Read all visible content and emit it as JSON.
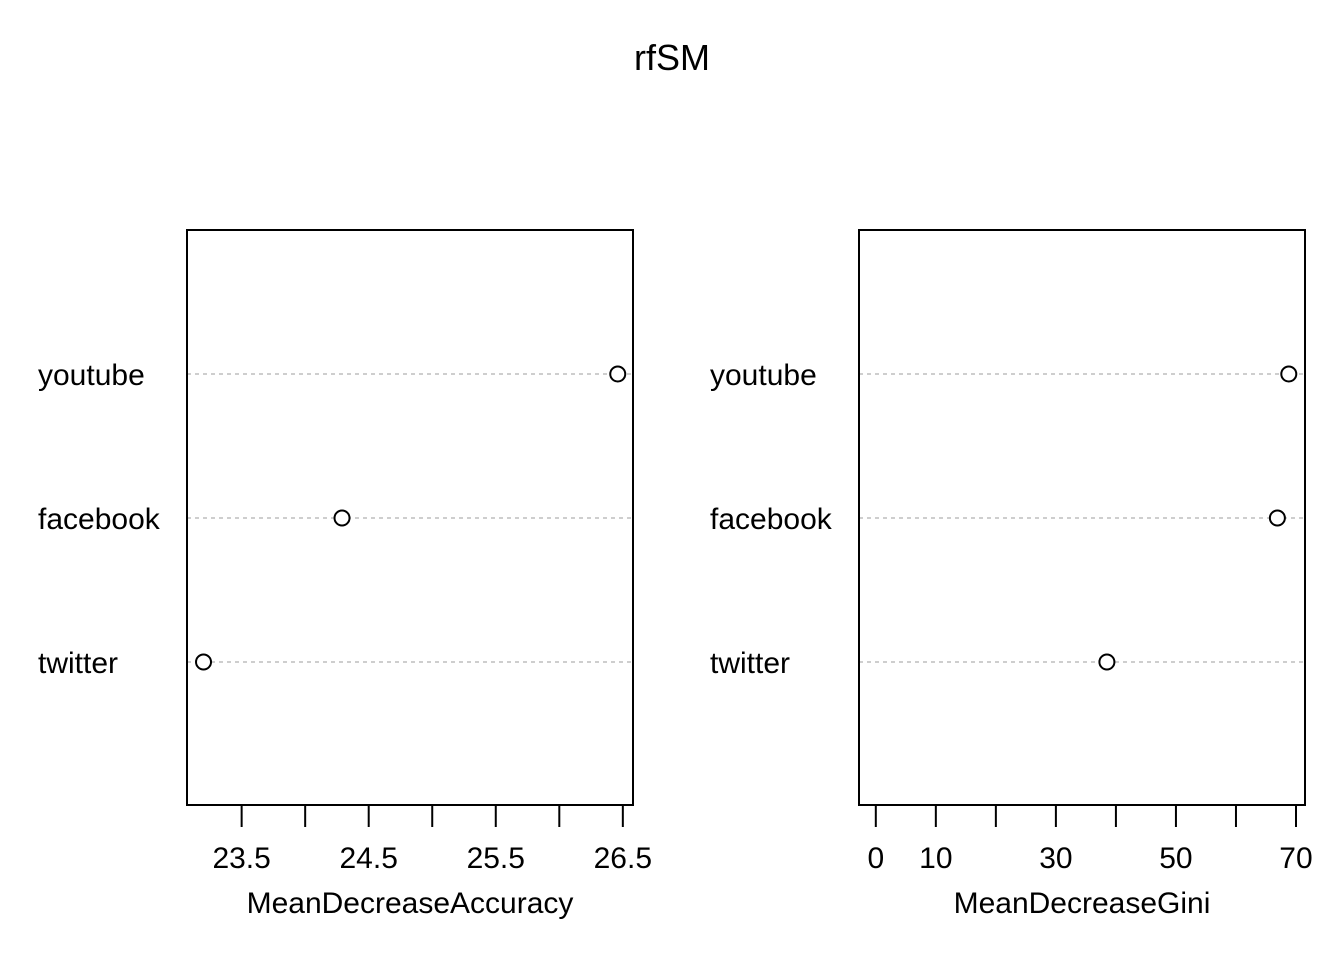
{
  "chart_data": {
    "title": "rfSM",
    "type": "scatter",
    "categories": [
      "youtube",
      "facebook",
      "twitter"
    ],
    "panels": [
      {
        "type": "scatter",
        "xlabel": "MeanDecreaseAccuracy",
        "xlim": [
          23.07,
          26.58
        ],
        "ticks": [
          23.5,
          24.0,
          24.5,
          25.0,
          25.5,
          26.0,
          26.5
        ],
        "tick_labels": [
          "23.5",
          "",
          "24.5",
          "",
          "25.5",
          "",
          "26.5"
        ],
        "series": [
          {
            "categories": [
              "youtube",
              "facebook",
              "twitter"
            ],
            "values": [
              26.46,
              24.29,
              23.2
            ]
          }
        ]
      },
      {
        "type": "scatter",
        "xlabel": "MeanDecreaseGini",
        "xlim": [
          -2.8,
          71.5
        ],
        "ticks": [
          0,
          10,
          20,
          30,
          40,
          50,
          60,
          70
        ],
        "tick_labels": [
          "0",
          "10",
          "",
          "30",
          "",
          "50",
          "",
          "70"
        ],
        "series": [
          {
            "categories": [
              "youtube",
              "facebook",
              "twitter"
            ],
            "values": [
              68.8,
              66.9,
              38.5
            ]
          }
        ]
      }
    ]
  }
}
